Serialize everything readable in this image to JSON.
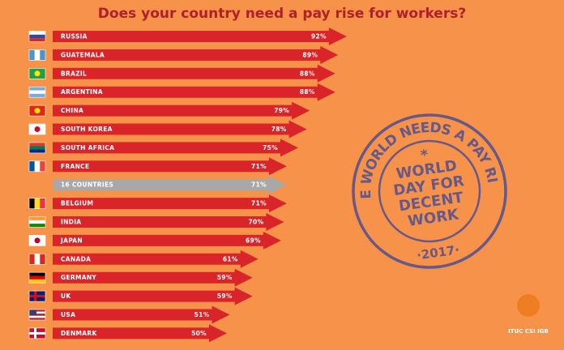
{
  "chart_data": {
    "type": "arrow-bar",
    "title": "Does your country need a pay rise for workers?",
    "categories": [
      "RUSSIA",
      "GUATEMALA",
      "BRAZIL",
      "ARGENTINA",
      "CHINA",
      "SOUTH KOREA",
      "SOUTH AFRICA",
      "FRANCE",
      "16 COUNTRIES",
      "BELGIUM",
      "INDIA",
      "JAPAN",
      "CANADA",
      "GERMANY",
      "UK",
      "USA",
      "DENMARK"
    ],
    "values": [
      92,
      89,
      88,
      88,
      79,
      78,
      75,
      71,
      71,
      71,
      70,
      69,
      61,
      59,
      59,
      51,
      50
    ],
    "value_labels": [
      "92%",
      "89%",
      "88%",
      "88%",
      "79%",
      "78%",
      "75%",
      "71%",
      "71%",
      "71%",
      "70%",
      "69%",
      "61%",
      "59%",
      "59%",
      "51%",
      "50%"
    ],
    "colors": [
      "#d9252a",
      "#d9252a",
      "#d9252a",
      "#d9252a",
      "#d9252a",
      "#d9252a",
      "#d9252a",
      "#d9252a",
      "#a8a8a8",
      "#d9252a",
      "#d9252a",
      "#d9252a",
      "#d9252a",
      "#d9252a",
      "#d9252a",
      "#d9252a",
      "#d9252a"
    ],
    "stamp": {
      "ring": "THE WORLD NEEDS A PAY RISE",
      "star": "*",
      "center": [
        "WORLD",
        "DAY FOR",
        "DECENT",
        "WORK"
      ],
      "year": "·2017·"
    },
    "logo": "ITUC CSI IGB"
  }
}
